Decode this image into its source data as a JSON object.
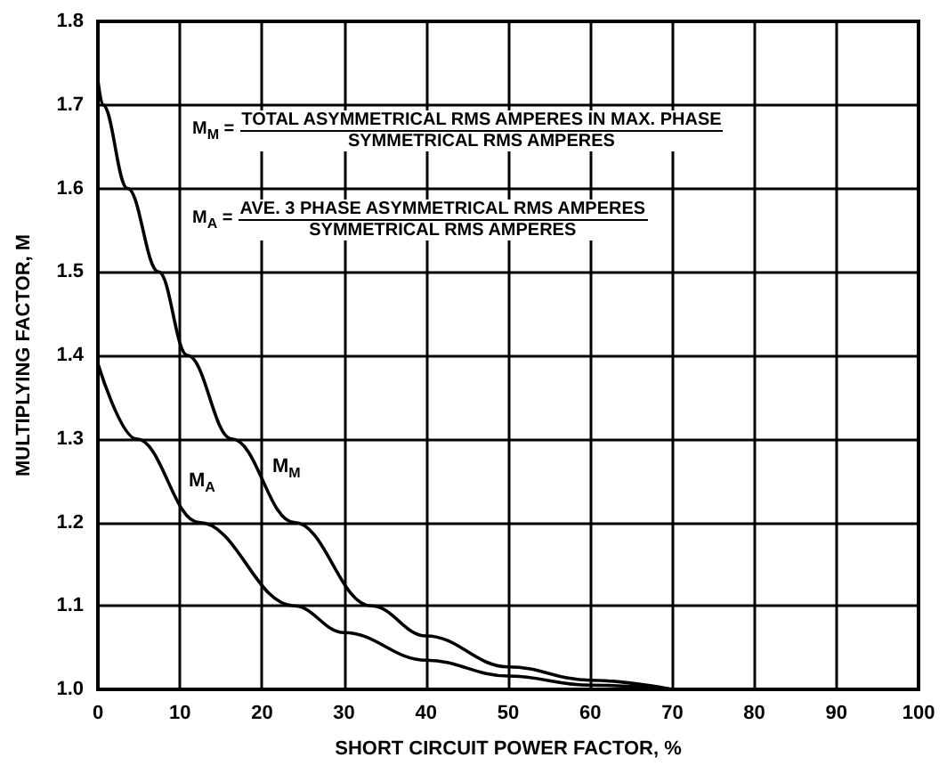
{
  "chart_data": {
    "type": "line",
    "xlabel": "SHORT CIRCUIT POWER FACTOR, %",
    "ylabel": "MULTIPLYING FACTOR, M",
    "series": [
      {
        "color": "#000000",
        "x": [
          0,
          0.6,
          3.6,
          7.4,
          10.9,
          16.3,
          23.9,
          33.3,
          40,
          50,
          60,
          70
        ],
        "values": [
          1.73,
          1.7,
          1.6,
          1.5,
          1.4,
          1.3,
          1.2,
          1.1,
          1.064,
          1.027,
          1.011,
          1.0
        ]
      },
      {
        "color": "#000000",
        "x": [
          0,
          4.7,
          12.3,
          23.9,
          30,
          40,
          50,
          60,
          70
        ],
        "values": [
          1.39,
          1.3,
          1.2,
          1.1,
          1.068,
          1.035,
          1.016,
          1.005,
          1.0
        ]
      }
    ],
    "xlim": [
      0,
      100
    ],
    "xticks": [
      0,
      10,
      20,
      30,
      40,
      50,
      60,
      70,
      80,
      90,
      100
    ],
    "ylim": [
      1,
      1.8
    ],
    "yticks": [
      {
        "value": 1,
        "label": "1.0"
      },
      1.1,
      1.2,
      1.3,
      1.4,
      1.5,
      1.6,
      1.7,
      1.8
    ],
    "grid": true,
    "marker": "none",
    "line_style": "solid",
    "annotations": [
      "M$_{M}$ =",
      "TOTAL ASYMMETRICAL RMS AMPERES IN MAX. PHASE",
      "SYMMETRICAL RMS AMPERES",
      "M$_{A}$ =",
      "AVE. 3 PHASE ASYMMETRICAL RMS AMPERES",
      "SYMMETRICAL RMS AMPERES",
      "M$_{A}$",
      "M$_{M}$"
    ]
  }
}
